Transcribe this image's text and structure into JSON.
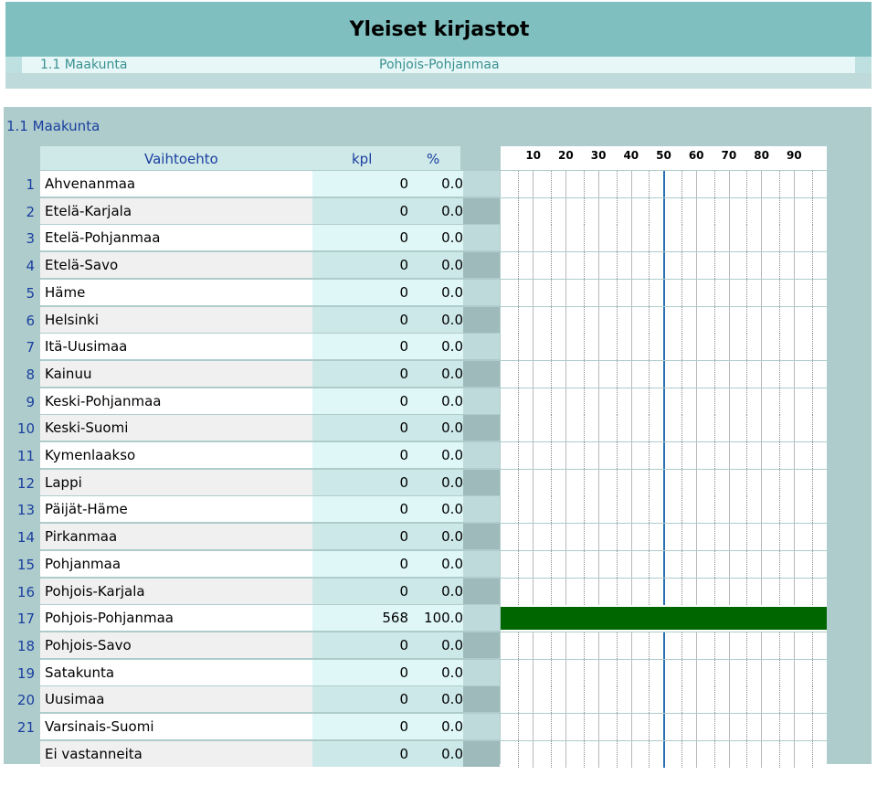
{
  "header": {
    "title": "Yleiset kirjastot",
    "question_code": "1.1 Maakunta",
    "filter": "Pohjois-Pohjanmaa"
  },
  "section": {
    "title": "1.1 Maakunta"
  },
  "columns": {
    "option": "Vaihtoehto",
    "count": "kpl",
    "percent": "%"
  },
  "chart_data": {
    "type": "bar",
    "orientation": "horizontal",
    "xlim": [
      0,
      100
    ],
    "ticks": [
      "10",
      "20",
      "30",
      "40",
      "50",
      "60",
      "70",
      "80",
      "90"
    ],
    "categories": [
      "Ahvenanmaa",
      "Etelä-Karjala",
      "Etelä-Pohjanmaa",
      "Etelä-Savo",
      "Häme",
      "Helsinki",
      "Itä-Uusimaa",
      "Kainuu",
      "Keski-Pohjanmaa",
      "Keski-Suomi",
      "Kymenlaakso",
      "Lappi",
      "Päijät-Häme",
      "Pirkanmaa",
      "Pohjanmaa",
      "Pohjois-Karjala",
      "Pohjois-Pohjanmaa",
      "Pohjois-Savo",
      "Satakunta",
      "Uusimaa",
      "Varsinais-Suomi",
      "Ei vastanneita"
    ],
    "values": [
      0,
      0,
      0,
      0,
      0,
      0,
      0,
      0,
      0,
      0,
      0,
      0,
      0,
      0,
      0,
      0,
      100,
      0,
      0,
      0,
      0,
      0
    ],
    "bar_color": "#006600"
  },
  "rows": [
    {
      "num": "1",
      "name": "Ahvenanmaa",
      "kpl": "0",
      "pct": "0.0"
    },
    {
      "num": "2",
      "name": "Etelä-Karjala",
      "kpl": "0",
      "pct": "0.0"
    },
    {
      "num": "3",
      "name": "Etelä-Pohjanmaa",
      "kpl": "0",
      "pct": "0.0"
    },
    {
      "num": "4",
      "name": "Etelä-Savo",
      "kpl": "0",
      "pct": "0.0"
    },
    {
      "num": "5",
      "name": "Häme",
      "kpl": "0",
      "pct": "0.0"
    },
    {
      "num": "6",
      "name": "Helsinki",
      "kpl": "0",
      "pct": "0.0"
    },
    {
      "num": "7",
      "name": "Itä-Uusimaa",
      "kpl": "0",
      "pct": "0.0"
    },
    {
      "num": "8",
      "name": "Kainuu",
      "kpl": "0",
      "pct": "0.0"
    },
    {
      "num": "9",
      "name": "Keski-Pohjanmaa",
      "kpl": "0",
      "pct": "0.0"
    },
    {
      "num": "10",
      "name": "Keski-Suomi",
      "kpl": "0",
      "pct": "0.0"
    },
    {
      "num": "11",
      "name": "Kymenlaakso",
      "kpl": "0",
      "pct": "0.0"
    },
    {
      "num": "12",
      "name": "Lappi",
      "kpl": "0",
      "pct": "0.0"
    },
    {
      "num": "13",
      "name": "Päijät-Häme",
      "kpl": "0",
      "pct": "0.0"
    },
    {
      "num": "14",
      "name": "Pirkanmaa",
      "kpl": "0",
      "pct": "0.0"
    },
    {
      "num": "15",
      "name": "Pohjanmaa",
      "kpl": "0",
      "pct": "0.0"
    },
    {
      "num": "16",
      "name": "Pohjois-Karjala",
      "kpl": "0",
      "pct": "0.0"
    },
    {
      "num": "17",
      "name": "Pohjois-Pohjanmaa",
      "kpl": "568",
      "pct": "100.0"
    },
    {
      "num": "18",
      "name": "Pohjois-Savo",
      "kpl": "0",
      "pct": "0.0"
    },
    {
      "num": "19",
      "name": "Satakunta",
      "kpl": "0",
      "pct": "0.0"
    },
    {
      "num": "20",
      "name": "Uusimaa",
      "kpl": "0",
      "pct": "0.0"
    },
    {
      "num": "21",
      "name": "Varsinais-Suomi",
      "kpl": "0",
      "pct": "0.0"
    },
    {
      "num": "",
      "name": "Ei vastanneita",
      "kpl": "0",
      "pct": "0.0"
    }
  ]
}
